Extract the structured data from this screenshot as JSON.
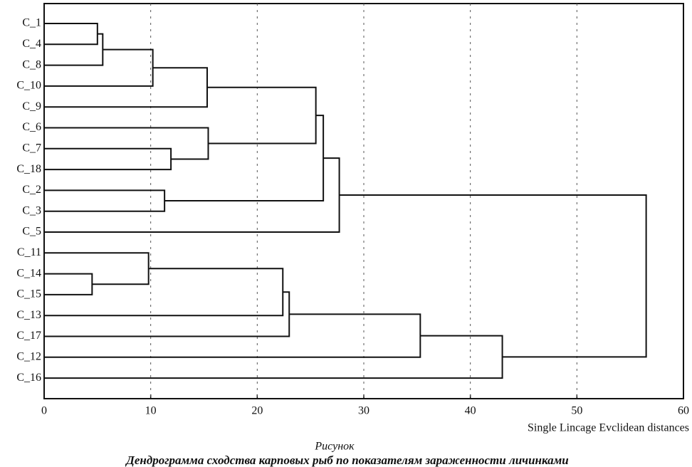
{
  "chart_data": {
    "type": "dendrogram",
    "tree": {
      "height": 56.5,
      "children": [
        {
          "height": 27.7,
          "children": [
            {
              "height": 26.2,
              "children": [
                {
                  "height": 25.5,
                  "children": [
                    {
                      "height": 15.3,
                      "children": [
                        {
                          "height": 10.2,
                          "children": [
                            {
                              "height": 5.5,
                              "children": [
                                {
                                  "height": 5.0,
                                  "children": [
                                    "C_1",
                                    "C_4"
                                  ]
                                },
                                "C_8"
                              ]
                            },
                            "C_10"
                          ]
                        },
                        "C_9"
                      ]
                    },
                    {
                      "height": 15.4,
                      "children": [
                        "C_6",
                        {
                          "height": 11.9,
                          "children": [
                            "C_7",
                            "C_18"
                          ]
                        }
                      ]
                    }
                  ]
                },
                {
                  "height": 11.3,
                  "children": [
                    "C_2",
                    "C_3"
                  ]
                }
              ]
            },
            "C_5"
          ]
        },
        {
          "height": 43.0,
          "children": [
            {
              "height": 35.3,
              "children": [
                {
                  "height": 23.0,
                  "children": [
                    {
                      "height": 22.4,
                      "children": [
                        {
                          "height": 9.8,
                          "children": [
                            "C_11",
                            {
                              "height": 4.5,
                              "children": [
                                "C_14",
                                "C_15"
                              ]
                            }
                          ]
                        },
                        "C_13"
                      ]
                    },
                    "C_17"
                  ]
                },
                "C_12"
              ]
            },
            "C_16"
          ]
        }
      ]
    },
    "xlim": [
      0,
      60
    ],
    "xticks": [
      0,
      10,
      20,
      30,
      40,
      50,
      60
    ],
    "grid": true,
    "x_label": "Single Lincage Evclidean distances",
    "caption_label": "Рисунок",
    "caption": "Дендрограмма сходства карповых рыб по показателям зараженности личинками",
    "color": "#111111"
  }
}
